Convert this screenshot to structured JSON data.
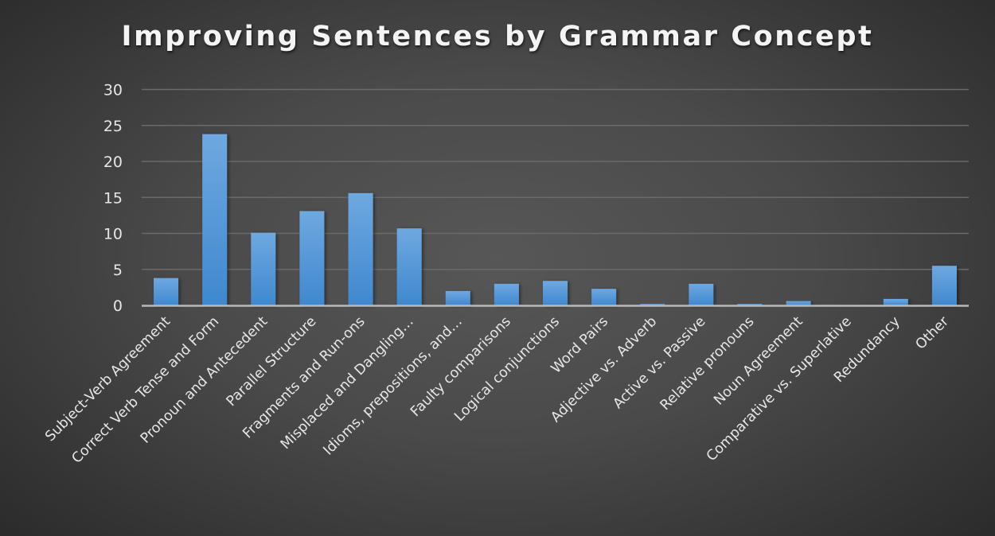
{
  "chart_data": {
    "type": "bar",
    "title": "Improving Sentences by Grammar Concept",
    "xlabel": "",
    "ylabel": "",
    "ylim": [
      0,
      30
    ],
    "yticks": [
      0,
      5,
      10,
      15,
      20,
      25,
      30
    ],
    "grid": true,
    "legend": null,
    "categories": [
      "Subject-Verb Agreement",
      "Correct Verb Tense and Form",
      "Pronoun and Antecedent",
      "Parallel Structure",
      "Fragments and Run-ons",
      "Misplaced and Dangling…",
      "Idioms, prepositions, and…",
      "Faulty comparisons",
      "Logical conjunctions",
      "Word Pairs",
      "Adjective vs. Adverb",
      "Active vs. Passive",
      "Relative pronouns",
      "Noun Agreement",
      "Comparative vs. Superlative",
      "Redundancy",
      "Other"
    ],
    "values": [
      3.8,
      23.8,
      10.1,
      13.1,
      15.6,
      10.7,
      2.0,
      3.0,
      3.4,
      2.3,
      0.2,
      3.0,
      0.2,
      0.6,
      0,
      0.9,
      5.5
    ],
    "colors": {
      "bar_top": "#6fa8e0",
      "bar_bottom": "#3f88cf",
      "gridline": "#6a6a6a",
      "axis": "#b9b9b9",
      "text": "#e6e6e6"
    }
  }
}
